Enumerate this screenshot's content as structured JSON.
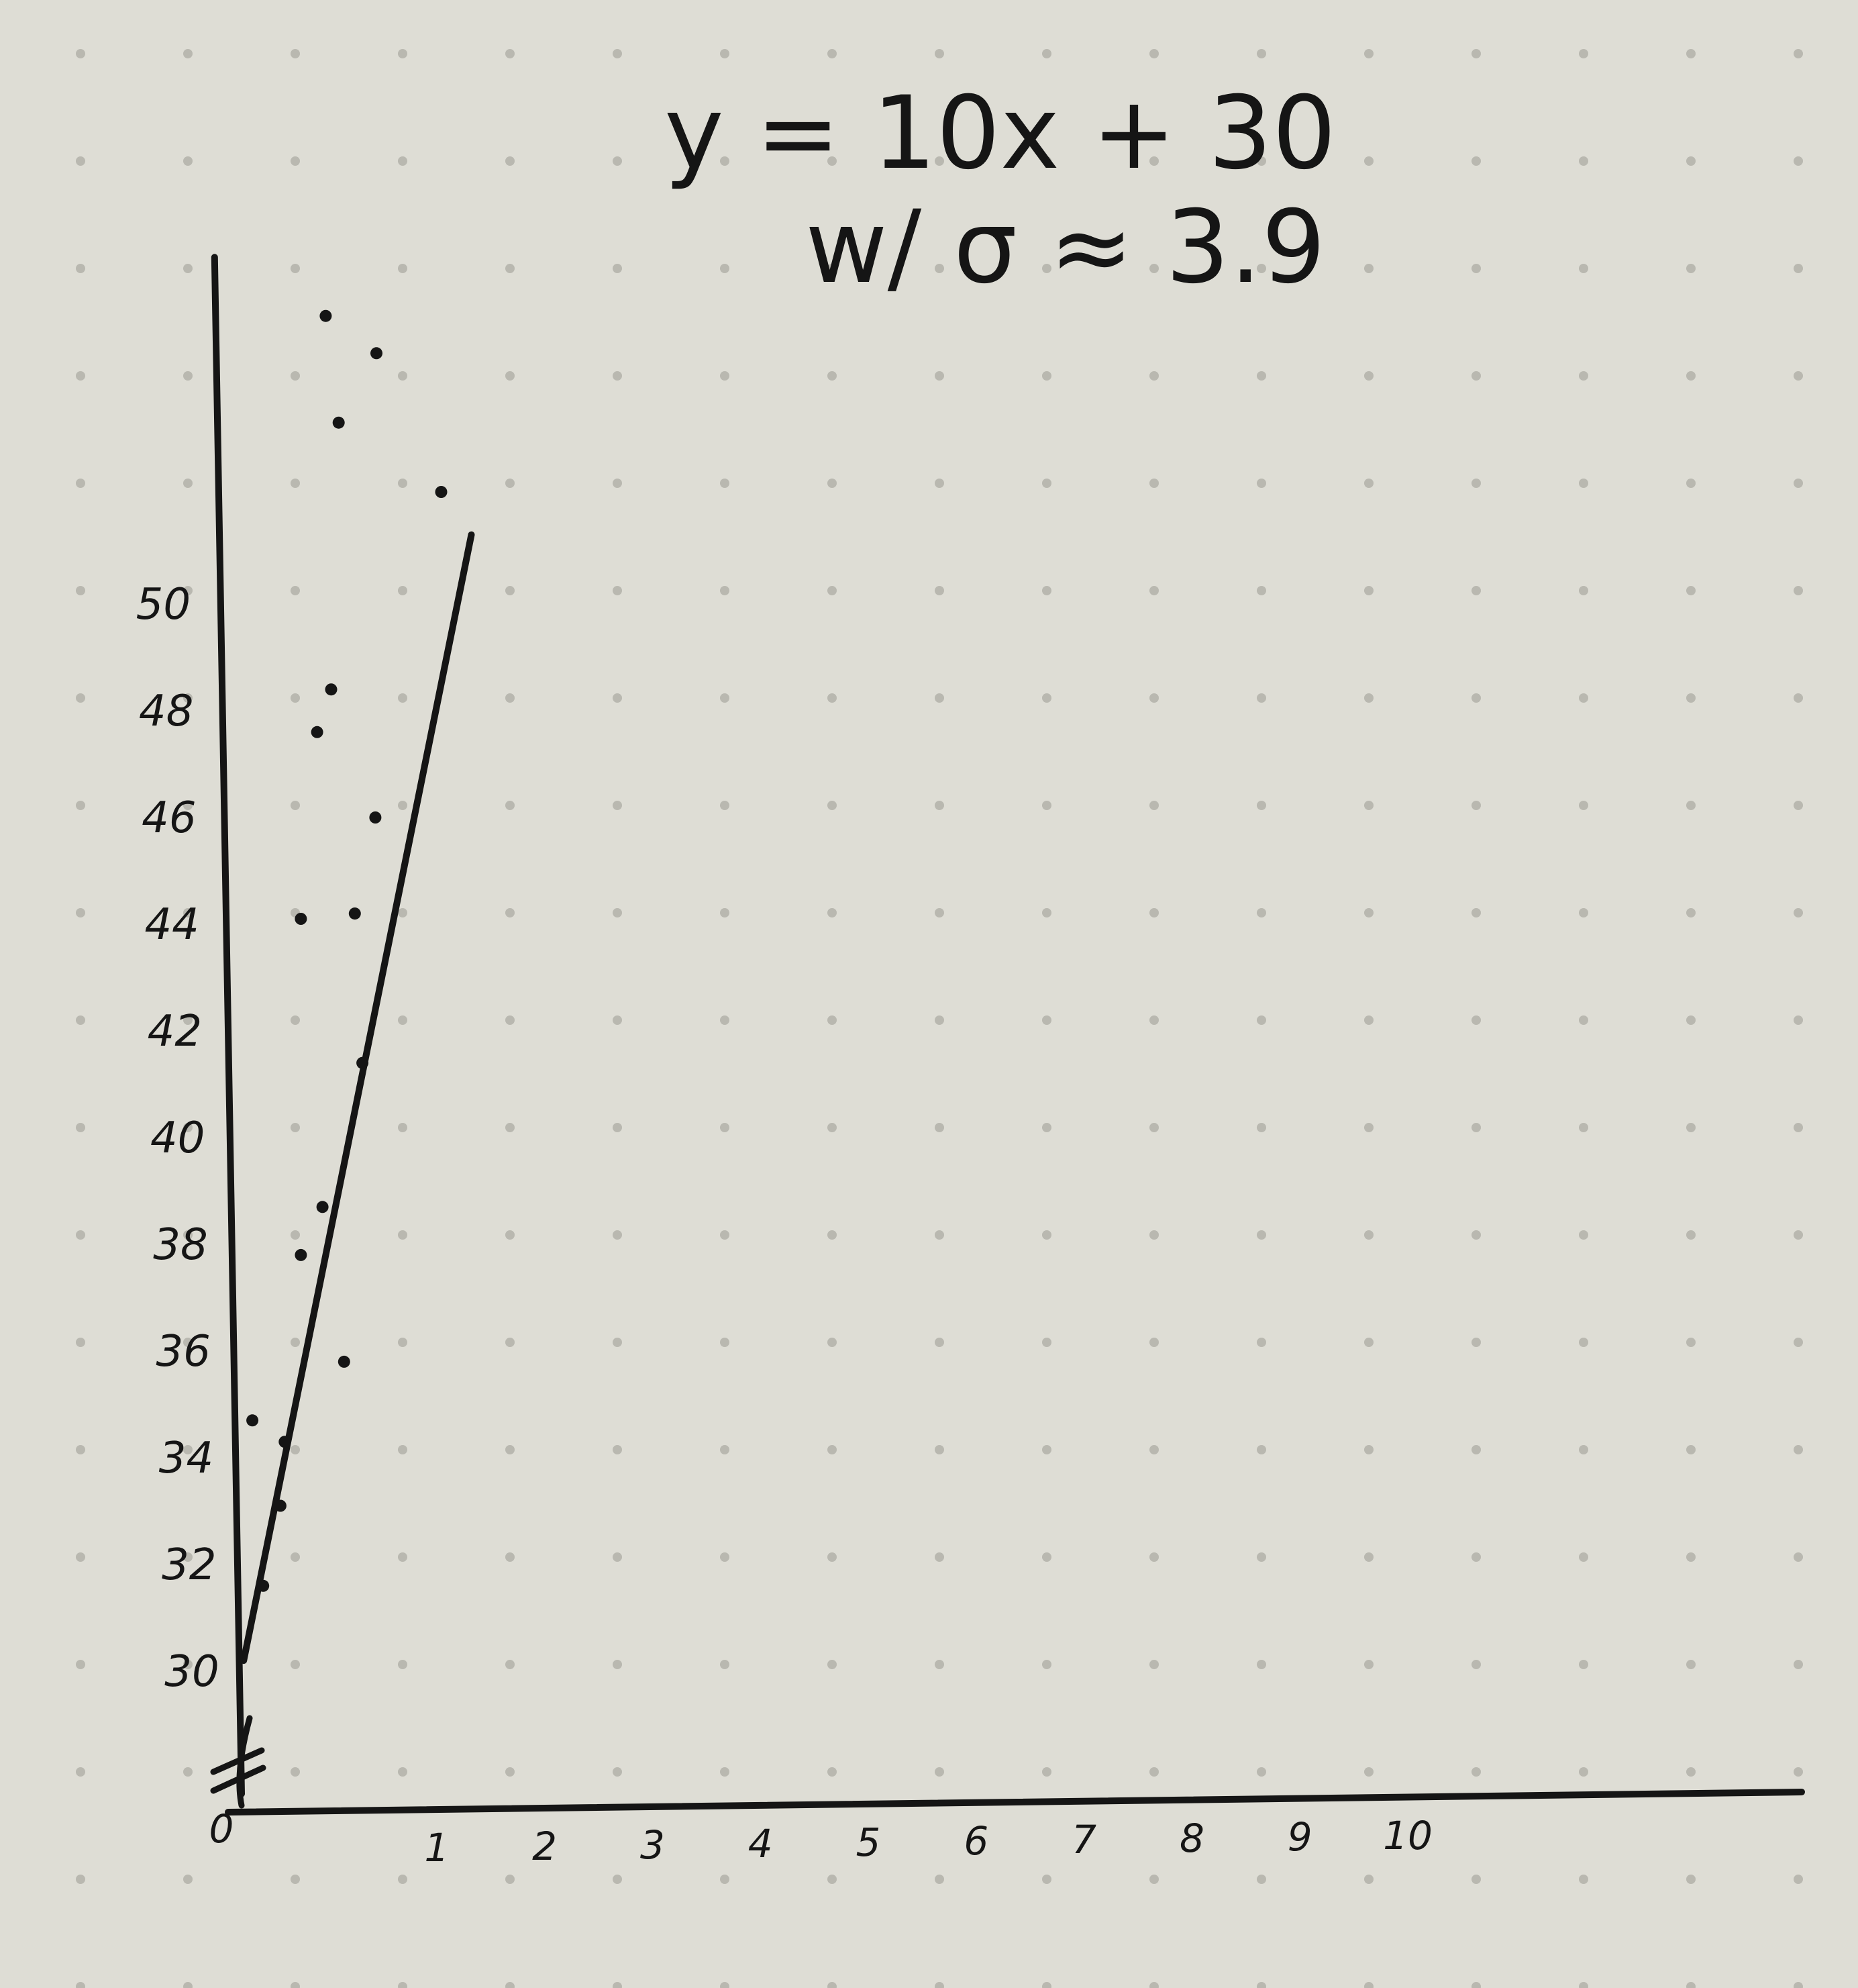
{
  "annotation": {
    "equation": "y = 10x + 30",
    "sigma": "w/ σ ≈ 3.9"
  },
  "colors": {
    "paper": "#deddd5",
    "ink": "#151515",
    "paper_dot": "#b9b8b0"
  },
  "chart_data": {
    "type": "scatter",
    "title": "",
    "xlabel": "",
    "ylabel": "",
    "x_ticks": [
      "0",
      "1",
      "2",
      "3",
      "4",
      "5",
      "6",
      "7",
      "8",
      "9",
      "10"
    ],
    "y_ticks": [
      "30",
      "32",
      "34",
      "36",
      "38",
      "40",
      "42",
      "44",
      "46",
      "48",
      "50"
    ],
    "xlim": [
      0,
      14.5
    ],
    "ylim": [
      27.5,
      56.5
    ],
    "axis_break": true,
    "grid": false,
    "legend": "none",
    "series": [
      {
        "type": "scatter",
        "points": [
          [
            0.2,
            31.6
          ],
          [
            0.4,
            34.3
          ],
          [
            0.55,
            37.8
          ],
          [
            0.1,
            34.7
          ],
          [
            0.36,
            33.1
          ],
          [
            0.95,
            35.8
          ],
          [
            0.75,
            38.7
          ],
          [
            0.55,
            44.1
          ],
          [
            0.7,
            47.6
          ],
          [
            0.83,
            48.4
          ],
          [
            1.12,
            41.4
          ],
          [
            1.05,
            44.2
          ],
          [
            1.24,
            46.0
          ],
          [
            0.9,
            53.4
          ],
          [
            1.85,
            52.1
          ],
          [
            0.78,
            55.4
          ],
          [
            1.25,
            54.7
          ]
        ]
      },
      {
        "type": "line",
        "equation": "y = 10x + 30",
        "slope": 10,
        "intercept": 30
      },
      {
        "type": "line",
        "note": "vertical axis line",
        "points": [
          [
            0,
            27.7
          ],
          [
            -0.25,
            56.5
          ]
        ]
      }
    ]
  }
}
